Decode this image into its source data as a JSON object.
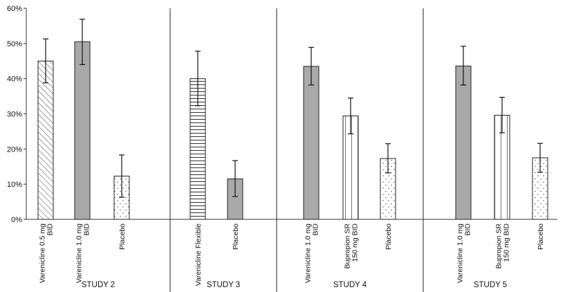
{
  "chart_data": {
    "type": "bar",
    "ylim": [
      0,
      60
    ],
    "y_ticks": [
      "0%",
      "10%",
      "20%",
      "30%",
      "40%",
      "50%",
      "60%"
    ],
    "y_tick_values": [
      0,
      10,
      20,
      30,
      40,
      50,
      60
    ],
    "grid": false,
    "legend": "none",
    "groups": [
      {
        "label": "STUDY 2",
        "bars": [
          {
            "label": [
              "Varenicline 0.5 mg",
              "BID"
            ],
            "value": 45.0,
            "err_low": 38.8,
            "err_high": 51.3,
            "pattern": "diagonal-hatch"
          },
          {
            "label": [
              "Varenicline 1.0 mg",
              "BID"
            ],
            "value": 50.5,
            "err_low": 44.0,
            "err_high": 56.9,
            "pattern": "solid-gray"
          },
          {
            "label": [
              "Placebo"
            ],
            "value": 12.3,
            "err_low": 6.3,
            "err_high": 18.3,
            "pattern": "dots"
          }
        ]
      },
      {
        "label": "STUDY 3",
        "bars": [
          {
            "label": [
              "Varenicline  Flexible"
            ],
            "value": 40.0,
            "err_low": 32.3,
            "err_high": 47.8,
            "pattern": "horizontal-lines"
          },
          {
            "label": [
              "Placebo"
            ],
            "value": 11.5,
            "err_low": 6.5,
            "err_high": 16.7,
            "pattern": "solid-gray"
          }
        ]
      },
      {
        "label": "STUDY 4",
        "bars": [
          {
            "label": [
              "Varenicline 1.0 mg",
              "BID"
            ],
            "value": 43.5,
            "err_low": 38.2,
            "err_high": 48.9,
            "pattern": "solid-gray"
          },
          {
            "label": [
              "Bupropion SR",
              "150 mg BID"
            ],
            "value": 29.4,
            "err_low": 24.3,
            "err_high": 34.5,
            "pattern": "vertical-lines"
          },
          {
            "label": [
              "Placebo"
            ],
            "value": 17.3,
            "err_low": 13.2,
            "err_high": 21.5,
            "pattern": "dots"
          }
        ]
      },
      {
        "label": "STUDY 5",
        "bars": [
          {
            "label": [
              "Varenicline 1.0 mg",
              "BID"
            ],
            "value": 43.6,
            "err_low": 38.2,
            "err_high": 49.2,
            "pattern": "solid-gray"
          },
          {
            "label": [
              "Bupropion SR",
              "150 mg BID"
            ],
            "value": 29.6,
            "err_low": 24.6,
            "err_high": 34.7,
            "pattern": "vertical-lines"
          },
          {
            "label": [
              "Placebo"
            ],
            "value": 17.5,
            "err_low": 13.4,
            "err_high": 21.6,
            "pattern": "dots"
          }
        ]
      }
    ],
    "colors": {
      "solid_gray": "#a9a9a9",
      "stroke": "#222222",
      "background": "#ffffff"
    }
  }
}
